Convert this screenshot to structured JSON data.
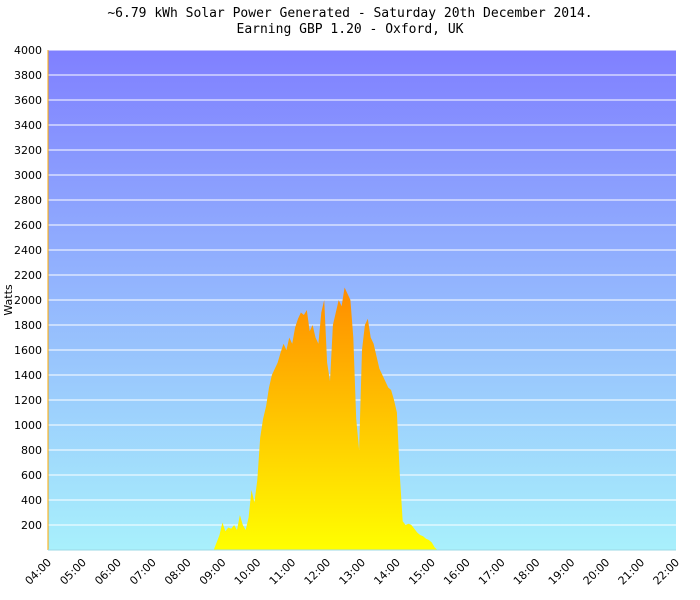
{
  "header": {
    "line1": "~6.79 kWh Solar Power Generated - Saturday 20th December 2014.",
    "line2": "Earning GBP 1.20 - Oxford, UK"
  },
  "chart_data": {
    "type": "area",
    "title": "~6.79 kWh Solar Power Generated - Saturday 20th December 2014.",
    "subtitle": "Earning GBP 1.20 - Oxford, UK",
    "ylabel": "Watts",
    "xlabel": "",
    "ylim": [
      0,
      4000
    ],
    "yticks": [
      200,
      400,
      600,
      800,
      1000,
      1200,
      1400,
      1600,
      1800,
      2000,
      2200,
      2400,
      2600,
      2800,
      3000,
      3200,
      3400,
      3600,
      3800,
      4000
    ],
    "xlim": [
      "04:00",
      "22:00"
    ],
    "xticks": [
      "04:00",
      "05:00",
      "06:00",
      "07:00",
      "08:00",
      "09:00",
      "10:00",
      "11:00",
      "12:00",
      "13:00",
      "14:00",
      "15:00",
      "16:00",
      "17:00",
      "18:00",
      "19:00",
      "20:00",
      "21:00",
      "22:00"
    ],
    "grid": true,
    "colors": {
      "bg_top": "#8080ff",
      "bg_bottom": "#a8f0fc",
      "fill_top": "#ff8c00",
      "fill_bottom": "#ffff00",
      "grid": "#ffffff"
    },
    "series": [
      {
        "x": [
          "08:45",
          "08:50",
          "08:55",
          "09:00",
          "09:05",
          "09:10",
          "09:15",
          "09:20",
          "09:25",
          "09:30",
          "09:35",
          "09:40",
          "09:45",
          "09:50",
          "09:55",
          "10:00",
          "10:05",
          "10:10",
          "10:15",
          "10:20",
          "10:25",
          "10:30",
          "10:35",
          "10:40",
          "10:45",
          "10:50",
          "10:55",
          "11:00",
          "11:05",
          "11:10",
          "11:15",
          "11:20",
          "11:25",
          "11:30",
          "11:35",
          "11:40",
          "11:45",
          "11:50",
          "11:55",
          "12:00",
          "12:05",
          "12:10",
          "12:15",
          "12:20",
          "12:25",
          "12:30",
          "12:35",
          "12:40",
          "12:45",
          "12:50",
          "12:55",
          "13:00",
          "13:05",
          "13:10",
          "13:15",
          "13:20",
          "13:25",
          "13:30",
          "13:35",
          "13:40",
          "13:45",
          "13:50",
          "13:55",
          "14:00",
          "14:05",
          "14:10",
          "14:15",
          "14:20",
          "14:25",
          "14:30",
          "14:35",
          "14:40",
          "14:45",
          "14:50",
          "14:55",
          "15:00",
          "15:05",
          "15:10",
          "15:15",
          "15:20",
          "15:25",
          "15:30",
          "15:35",
          "15:40",
          "15:45",
          "15:50",
          "15:55",
          "16:00",
          "16:05"
        ],
        "values": [
          0,
          60,
          120,
          220,
          150,
          180,
          170,
          200,
          160,
          280,
          200,
          160,
          260,
          480,
          380,
          560,
          900,
          1050,
          1150,
          1300,
          1400,
          1450,
          1500,
          1580,
          1650,
          1600,
          1700,
          1650,
          1780,
          1850,
          1900,
          1880,
          1920,
          1750,
          1800,
          1700,
          1650,
          1900,
          2000,
          1500,
          1350,
          1800,
          1900,
          2000,
          1950,
          2100,
          2050,
          2000,
          1700,
          1050,
          800,
          1600,
          1800,
          1850,
          1700,
          1650,
          1550,
          1450,
          1400,
          1350,
          1300,
          1280,
          1200,
          1100,
          600,
          230,
          200,
          210,
          200,
          170,
          140,
          120,
          110,
          90,
          80,
          60,
          20,
          0,
          0,
          0,
          0,
          0,
          0,
          0,
          0,
          0,
          0,
          0,
          0
        ]
      }
    ]
  }
}
